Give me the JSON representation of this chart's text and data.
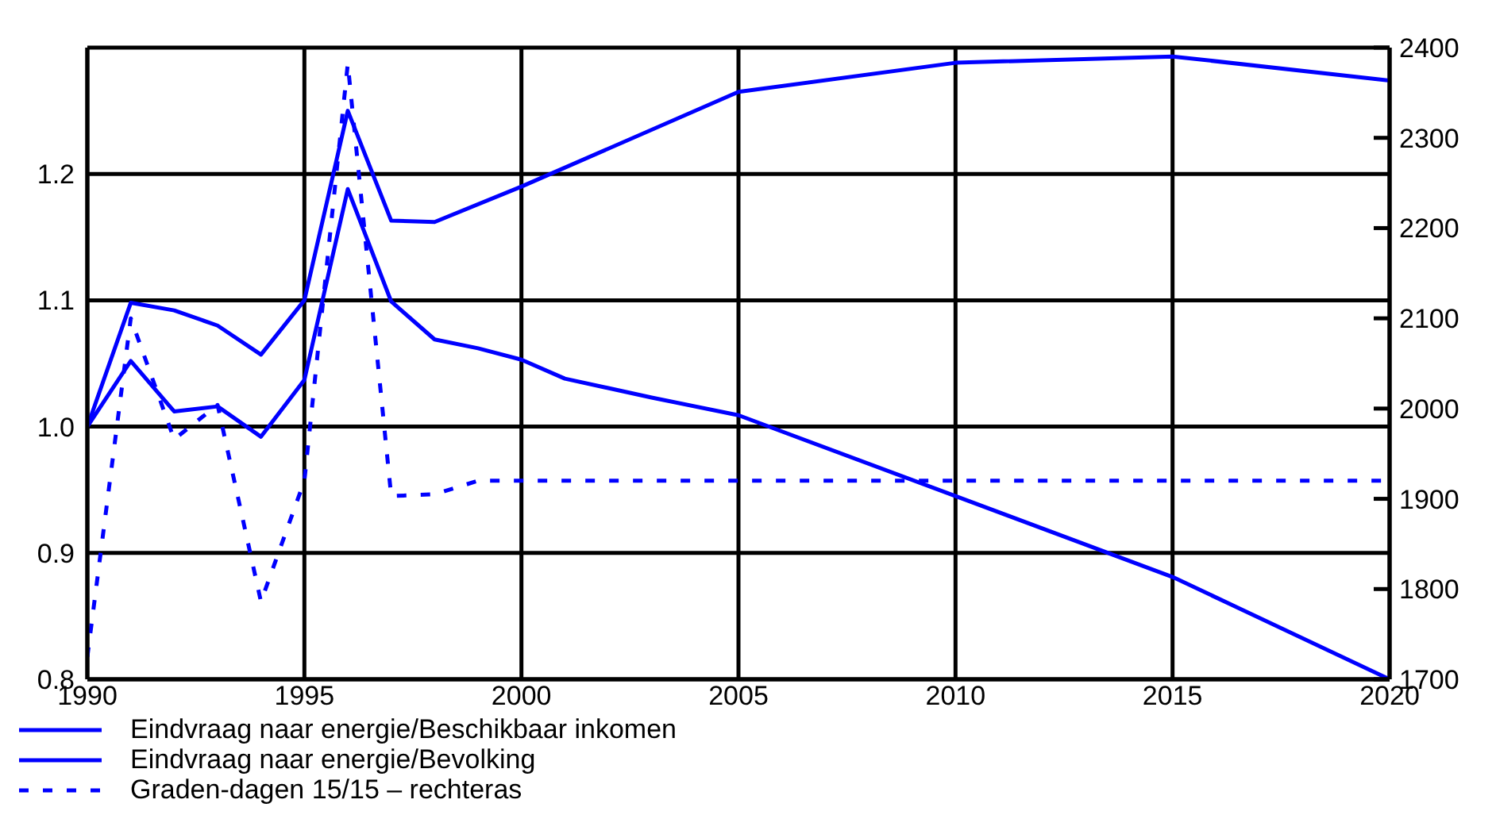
{
  "chart_data": {
    "type": "line",
    "xlim": [
      1990,
      2020
    ],
    "xticks": [
      1990,
      1995,
      2000,
      2005,
      2010,
      2015,
      2020
    ],
    "ylim": [
      0.8,
      1.3
    ],
    "yticks": [
      0.8,
      0.9,
      {
        "value": 1.0,
        "label": "1.0"
      },
      1.1,
      1.2,
      {
        "value": 1.3,
        "label": null
      }
    ],
    "y2lim": [
      1700,
      2400
    ],
    "y2ticks": [
      1700,
      1800,
      1900,
      2000,
      2100,
      2200,
      2300,
      2400
    ],
    "grid": true,
    "legend": "bottom left",
    "marker": "none",
    "series": [
      {
        "name": "Eindvraag naar energie/Beschikbaar inkomen",
        "color": "#0000ff",
        "line_style": "solid",
        "x": [
          1990,
          1991,
          1992,
          1993,
          1994,
          1995,
          1996,
          1997,
          1998,
          2000,
          2005,
          2010,
          2015,
          2020
        ],
        "values": [
          1.0,
          1.098,
          1.092,
          1.08,
          1.057,
          1.1,
          1.25,
          1.163,
          1.162,
          1.19,
          1.265,
          1.288,
          1.293,
          1.274
        ]
      },
      {
        "name": "Eindvraag naar energie/Bevolking",
        "color": "#0000ff",
        "line_style": "solid",
        "x": [
          1990,
          1991,
          1992,
          1993,
          1994,
          1995,
          1996,
          1997,
          1998,
          1999,
          2000,
          2001,
          2003,
          2005,
          2010,
          2015,
          2020
        ],
        "values": [
          1.0,
          1.052,
          1.012,
          1.016,
          0.992,
          1.037,
          1.188,
          1.099,
          1.069,
          1.062,
          1.053,
          1.038,
          1.023,
          1.009,
          0.945,
          0.881,
          0.8
        ]
      },
      {
        "name": "Graden-dagen 15/15 – rechteras",
        "color": "#0000ff",
        "line_style": "dashed",
        "axis": "y2",
        "x": [
          1990,
          1991,
          1992,
          1993,
          1994,
          1995,
          1996,
          1997,
          1998,
          1999,
          2000,
          2005,
          2010,
          2015,
          2020
        ],
        "values": [
          1725,
          2100,
          1966,
          2004,
          1786,
          1920,
          2382,
          1903,
          1905,
          1920,
          1920,
          1920,
          1920,
          1920,
          1920
        ]
      }
    ]
  }
}
